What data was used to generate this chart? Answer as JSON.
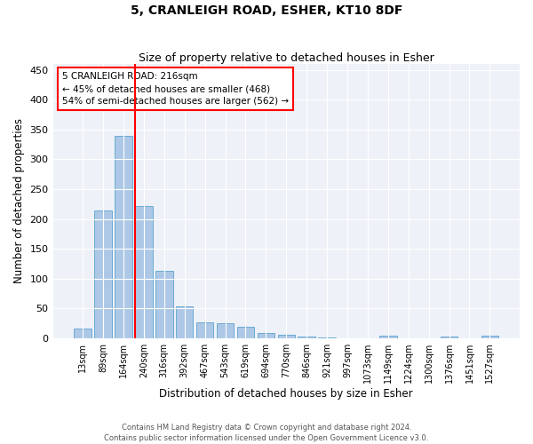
{
  "title": "5, CRANLEIGH ROAD, ESHER, KT10 8DF",
  "subtitle": "Size of property relative to detached houses in Esher",
  "xlabel": "Distribution of detached houses by size in Esher",
  "ylabel": "Number of detached properties",
  "bar_color": "#adc8e6",
  "bar_edge_color": "#6aaad4",
  "background_color": "#eef2f8",
  "grid_color": "#ffffff",
  "vline_color": "red",
  "vline_index": 3,
  "annotation_text": "5 CRANLEIGH ROAD: 216sqm\n← 45% of detached houses are smaller (468)\n54% of semi-detached houses are larger (562) →",
  "annotation_box_color": "red",
  "footnote": "Contains HM Land Registry data © Crown copyright and database right 2024.\nContains public sector information licensed under the Open Government Licence v3.0.",
  "categories": [
    "13sqm",
    "89sqm",
    "164sqm",
    "240sqm",
    "316sqm",
    "392sqm",
    "467sqm",
    "543sqm",
    "619sqm",
    "694sqm",
    "770sqm",
    "846sqm",
    "921sqm",
    "997sqm",
    "1073sqm",
    "1149sqm",
    "1224sqm",
    "1300sqm",
    "1376sqm",
    "1451sqm",
    "1527sqm"
  ],
  "values": [
    17,
    215,
    340,
    222,
    113,
    54,
    26,
    25,
    20,
    9,
    6,
    3,
    1,
    0,
    0,
    4,
    0,
    0,
    3,
    0,
    4
  ],
  "ylim": [
    0,
    460
  ],
  "yticks": [
    0,
    50,
    100,
    150,
    200,
    250,
    300,
    350,
    400,
    450
  ]
}
